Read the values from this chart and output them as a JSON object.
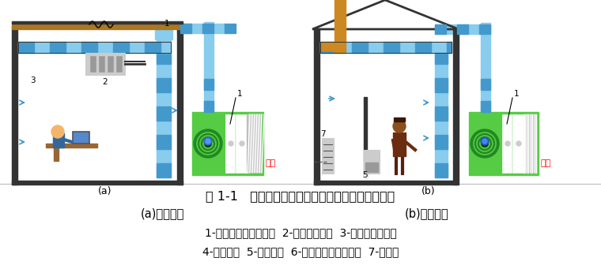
{
  "title_line": "图 1-1   民用建筑和工业建筑的采暖通风和空调系统",
  "subtitle_left": "(a)民用建筑",
  "subtitle_right": "(b)工业建筑",
  "caption_line1": "1-新风的空气处理机组  2-风机盘管机组  3-电器和电子设备",
  "caption_line2": "4-照明灯具  5-工艺设备  6-排风风机及排风系统  7-散热器",
  "label_a": "(a)",
  "label_b": "(b)",
  "bg_color": "#ffffff",
  "text_color": "#000000",
  "xinfeng_color": "#ff0000",
  "wall_color": "#333333",
  "duct_color_light": "#88ccee",
  "duct_color_dark": "#4499cc",
  "ahu_green_light": "#55cc44",
  "ahu_green_dark": "#228822",
  "pipe_brown": "#cc8822",
  "caption_font": 11
}
